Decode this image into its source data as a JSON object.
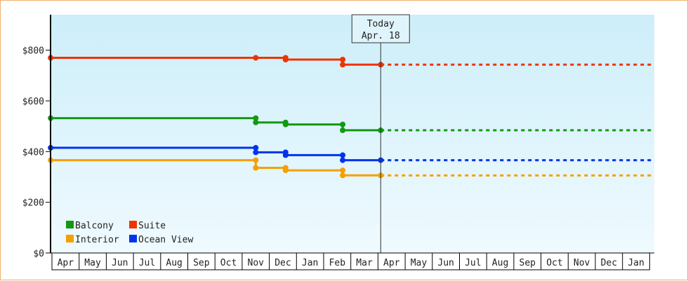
{
  "chart_data": {
    "type": "line",
    "step": true,
    "ylim": [
      0,
      940
    ],
    "yticks": [
      0,
      200,
      400,
      600,
      800
    ],
    "ytick_labels": [
      "$0",
      "$200",
      "$400",
      "$600",
      "$800"
    ],
    "x_labels": [
      "Apr",
      "May",
      "Jun",
      "Jul",
      "Aug",
      "Sep",
      "Oct",
      "Nov",
      "Dec",
      "Jan",
      "Feb",
      "Mar",
      "Apr",
      "May",
      "Jun",
      "Jul",
      "Aug",
      "Sep",
      "Oct",
      "Nov",
      "Dec",
      "Jan"
    ],
    "today": {
      "title": "Today",
      "date": "Apr. 18",
      "x": 12.1
    },
    "legend_position": "bottom-left",
    "grid": false,
    "series": [
      {
        "name": "Suite",
        "color": "#ee3300",
        "points": [
          [
            -0.05,
            770
          ],
          [
            7.5,
            770
          ],
          [
            8.6,
            770
          ],
          [
            8.6,
            763
          ],
          [
            10.7,
            763
          ],
          [
            10.7,
            743
          ],
          [
            12.1,
            743
          ]
        ],
        "projection": 743
      },
      {
        "name": "Balcony",
        "color": "#119911",
        "points": [
          [
            -0.05,
            532
          ],
          [
            7.5,
            532
          ],
          [
            7.5,
            515
          ],
          [
            8.6,
            515
          ],
          [
            8.6,
            507
          ],
          [
            10.7,
            507
          ],
          [
            10.7,
            484
          ],
          [
            12.1,
            484
          ]
        ],
        "projection": 484
      },
      {
        "name": "Ocean View",
        "color": "#0033ee",
        "points": [
          [
            -0.05,
            415
          ],
          [
            7.5,
            415
          ],
          [
            7.5,
            397
          ],
          [
            8.6,
            397
          ],
          [
            8.6,
            386
          ],
          [
            10.7,
            386
          ],
          [
            10.7,
            366
          ],
          [
            12.1,
            366
          ]
        ],
        "projection": 366
      },
      {
        "name": "Interior",
        "color": "#f5a000",
        "points": [
          [
            -0.05,
            366
          ],
          [
            7.5,
            366
          ],
          [
            7.5,
            336
          ],
          [
            8.6,
            336
          ],
          [
            8.6,
            326
          ],
          [
            10.7,
            326
          ],
          [
            10.7,
            306
          ],
          [
            12.1,
            306
          ]
        ],
        "projection": 306
      }
    ],
    "legend": [
      {
        "name": "Balcony",
        "color": "#119911"
      },
      {
        "name": "Suite",
        "color": "#ee3300"
      },
      {
        "name": "Interior",
        "color": "#f5a000"
      },
      {
        "name": "Ocean View",
        "color": "#0033ee"
      }
    ]
  }
}
